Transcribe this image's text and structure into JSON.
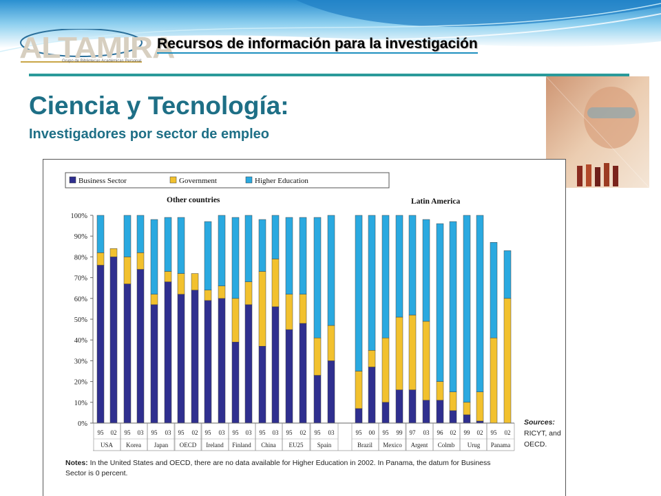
{
  "header": {
    "logo_text": "ALTAMIRA",
    "logo_subtext": "Grupo de Bibliotecas Académicas Personal",
    "title": "Recursos de información para la investigación"
  },
  "slide": {
    "title": "Ciencia y Tecnología:",
    "subtitle": "Investigadores por sector de empleo"
  },
  "chart_data": {
    "type": "bar",
    "stacked": true,
    "y_axis": {
      "min": 0,
      "max": 100,
      "ticks": [
        "0%",
        "10%",
        "20%",
        "30%",
        "40%",
        "50%",
        "60%",
        "70%",
        "80%",
        "90%",
        "100%"
      ]
    },
    "grid": false,
    "legend_position": "top-left",
    "legend": [
      {
        "name": "Business Sector",
        "color": "#2f2f8f"
      },
      {
        "name": "Government",
        "color": "#f2c12e"
      },
      {
        "name": "Higher Education",
        "color": "#2aa9e0"
      }
    ],
    "section_labels": [
      "Other countries",
      "Latin America"
    ],
    "groups": [
      {
        "name": "USA",
        "years": [
          "95",
          "02"
        ]
      },
      {
        "name": "Korea",
        "years": [
          "95",
          "03"
        ]
      },
      {
        "name": "Japan",
        "years": [
          "95",
          "03"
        ]
      },
      {
        "name": "OECD",
        "years": [
          "95",
          "02"
        ]
      },
      {
        "name": "Ireland",
        "years": [
          "95",
          "03"
        ]
      },
      {
        "name": "Finland",
        "years": [
          "95",
          "03"
        ]
      },
      {
        "name": "China",
        "years": [
          "95",
          "03"
        ]
      },
      {
        "name": "EU25",
        "years": [
          "95",
          "02"
        ]
      },
      {
        "name": "Spain",
        "years": [
          "95",
          "03"
        ]
      },
      {
        "name": "Brazil",
        "years": [
          "95",
          "00"
        ]
      },
      {
        "name": "Mexico",
        "years": [
          "95",
          "99"
        ]
      },
      {
        "name": "Argent",
        "years": [
          "97",
          "03"
        ]
      },
      {
        "name": "Colmb",
        "years": [
          "96",
          "02"
        ]
      },
      {
        "name": "Urug",
        "years": [
          "99",
          "02"
        ]
      },
      {
        "name": "Panama",
        "years": [
          "95",
          "02"
        ]
      }
    ],
    "series": [
      {
        "name": "Business Sector",
        "values": [
          76,
          80,
          67,
          74,
          57,
          68,
          62,
          64,
          59,
          60,
          39,
          57,
          37,
          56,
          45,
          48,
          23,
          30,
          7,
          27,
          10,
          16,
          16,
          11,
          11,
          6,
          4,
          1,
          0,
          0
        ]
      },
      {
        "name": "Government",
        "values": [
          6,
          4,
          13,
          8,
          5,
          5,
          10,
          8,
          5,
          6,
          21,
          11,
          36,
          23,
          17,
          14,
          18,
          17,
          18,
          8,
          31,
          35,
          36,
          38,
          9,
          9,
          6,
          14,
          41,
          60
        ]
      },
      {
        "name": "Higher Education",
        "values": [
          18,
          0,
          20,
          18,
          36,
          26,
          27,
          0,
          33,
          34,
          39,
          32,
          25,
          21,
          37,
          37,
          58,
          53,
          75,
          65,
          59,
          49,
          48,
          49,
          76,
          82,
          90,
          85,
          46,
          23
        ]
      }
    ]
  },
  "notes": {
    "label": "Notes:",
    "text": "In the United States and OECD, there are no data available for Higher Education in 2002.  In Panama, the datum for Business Sector is 0 percent."
  },
  "sources": {
    "label": "Sources:",
    "line1": "RICYT, and",
    "line2": "OECD."
  },
  "colors": {
    "title": "#1e6f86",
    "rule": "#2a9a9a",
    "business": "#2f2f8f",
    "government": "#f2c12e",
    "higher_education": "#2aa9e0"
  }
}
